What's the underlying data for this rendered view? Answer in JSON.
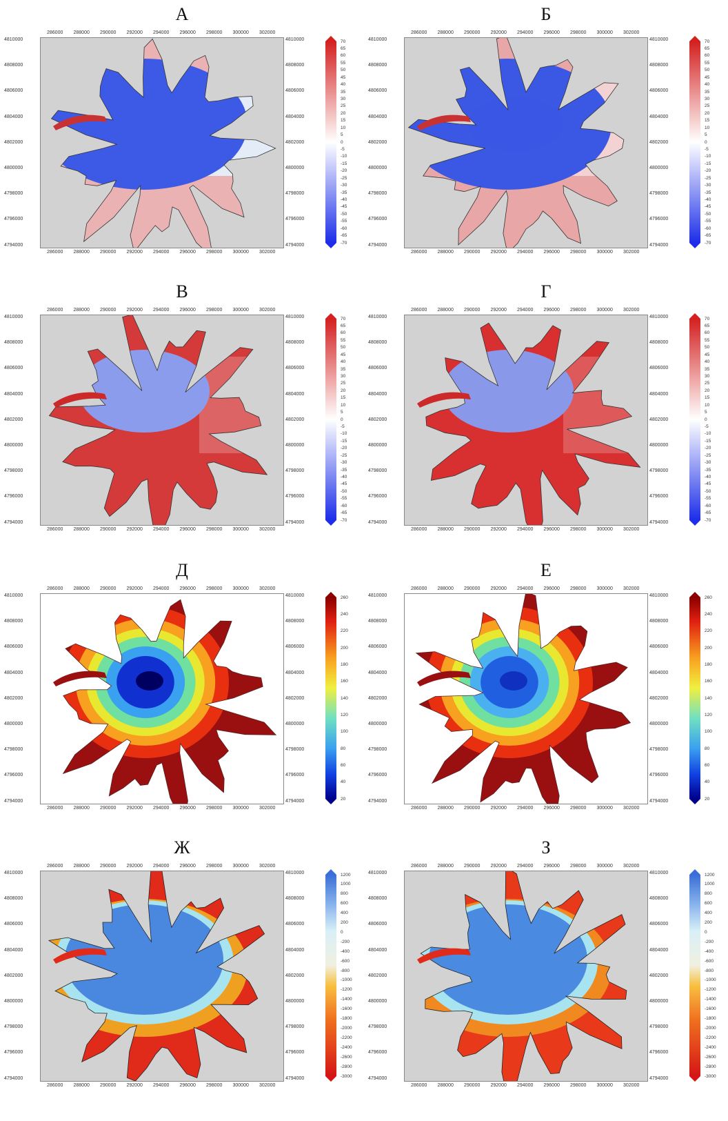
{
  "x_ticks": [
    "286000",
    "288000",
    "290000",
    "292000",
    "294000",
    "296000",
    "298000",
    "300000",
    "302000"
  ],
  "y_ticks": [
    "4810000",
    "4808000",
    "4806000",
    "4804000",
    "4802000",
    "4800000",
    "4798000",
    "4796000",
    "4794000"
  ],
  "colorbars": {
    "div70": {
      "labels": [
        "70",
        "65",
        "60",
        "55",
        "50",
        "45",
        "40",
        "35",
        "30",
        "25",
        "20",
        "15",
        "10",
        "5",
        "0",
        "-5",
        "-10",
        "-15",
        "-20",
        "-25",
        "-30",
        "-35",
        "-40",
        "-45",
        "-50",
        "-55",
        "-60",
        "-65",
        "-70"
      ],
      "top_color": "#d42020",
      "bottom_color": "#1c2ee8",
      "mid_color": "#ffffff"
    },
    "jet260": {
      "labels": [
        "260",
        "240",
        "220",
        "200",
        "180",
        "160",
        "140",
        "120",
        "100",
        "80",
        "60",
        "40",
        "20"
      ],
      "top_color": "#8b0000",
      "bottom_color": "#00008b"
    },
    "div1200": {
      "labels": [
        "1200",
        "1000",
        "800",
        "600",
        "400",
        "200",
        "0",
        "-200",
        "-400",
        "-600",
        "-800",
        "-1000",
        "-1200",
        "-1400",
        "-1600",
        "-1800",
        "-2000",
        "-2200",
        "-2400",
        "-2600",
        "-2800",
        "-3000"
      ],
      "top_color": "#3a6fd8",
      "bottom_color": "#d41616"
    }
  },
  "panels": [
    {
      "title": "А",
      "type": "div",
      "colorbar": "div70",
      "colors": {
        "bg": "#d2d2d2",
        "north": "#3d5ae6",
        "south": "#eab2b2",
        "east": "#e4ecf8",
        "tongue": "#c83232",
        "contour": "#333333"
      }
    },
    {
      "title": "Б",
      "type": "div",
      "colorbar": "div70",
      "colors": {
        "bg": "#d2d2d2",
        "north": "#3a58e4",
        "south": "#e8a6a6",
        "east": "#f2d2d2",
        "tongue": "#c83232",
        "contour": "#333333"
      }
    },
    {
      "title": "В",
      "type": "div",
      "colorbar": "div70",
      "colors": {
        "bg": "#d2d2d2",
        "north": "#8c9cec",
        "south": "#d43a3a",
        "east": "#dc6464",
        "tongue": "#cc2a2a",
        "contour": "#333333"
      }
    },
    {
      "title": "Г",
      "type": "div",
      "colorbar": "div70",
      "colors": {
        "bg": "#d2d2d2",
        "north": "#8a98ea",
        "south": "#d83030",
        "east": "#de5a5a",
        "tongue": "#cc2a2a",
        "contour": "#333333"
      }
    },
    {
      "title": "Д",
      "type": "jet",
      "colorbar": "jet260",
      "colors": {
        "bg": "#ffffff",
        "ring1": "#9a0f0f",
        "ring2": "#e83010",
        "ring3": "#f8a020",
        "ring4": "#e8e830",
        "ring5": "#70e0a0",
        "ring6": "#3aa0f0",
        "core": "#1030d0",
        "darkcore": "#000060",
        "tongue": "#9a0f0f"
      }
    },
    {
      "title": "Е",
      "type": "jet",
      "colorbar": "jet260",
      "colors": {
        "bg": "#ffffff",
        "ring1": "#9a0f0f",
        "ring2": "#e83010",
        "ring3": "#f8a020",
        "ring4": "#e8e830",
        "ring5": "#70e0a0",
        "ring6": "#4ab0f0",
        "core": "#2060e0",
        "darkcore": "#1030c0",
        "tongue": "#9a0f0f"
      }
    },
    {
      "title": "Ж",
      "type": "ice",
      "colorbar": "div1200",
      "colors": {
        "bg": "#d2d2d2",
        "core": "#4a88e0",
        "ring": "#a8e4f0",
        "south": "#e02a1a",
        "east": "#e02a1a",
        "warm": "#f0a020",
        "tongue": "#e02a1a",
        "contour": "#222222"
      }
    },
    {
      "title": "З",
      "type": "ice",
      "colorbar": "div1200",
      "colors": {
        "bg": "#d2d2d2",
        "core": "#4a8ae0",
        "ring": "#a8e4f0",
        "south": "#e83a1a",
        "east": "#e02a1a",
        "warm": "#f08a20",
        "tongue": "#e02a1a",
        "contour": "#222222"
      }
    }
  ]
}
